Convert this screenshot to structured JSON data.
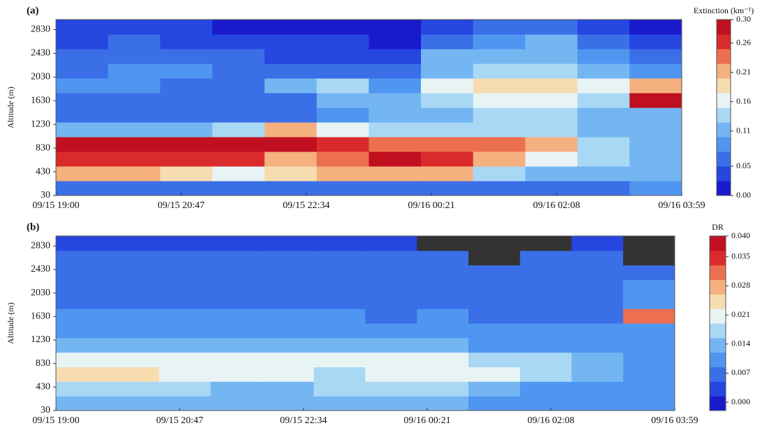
{
  "chart_data": [
    {
      "type": "heatmap",
      "title": "(a)",
      "y_label": "Altitude (m)",
      "xticks": [
        "09/15 19:00",
        "09/15 20:47",
        "09/15 22:34",
        "09/16 00:21",
        "09/16 02:08",
        "09/16 03:59"
      ],
      "ylim": [
        30,
        3000
      ],
      "yticks": [
        30,
        430,
        830,
        1230,
        1630,
        2030,
        2430,
        2830
      ],
      "z": [
        [
          0.05,
          0.05,
          0.05,
          0.05,
          0.05,
          0.06,
          0.06,
          0.06,
          0.06,
          0.06,
          0.07,
          0.08
        ],
        [
          0.2,
          0.2,
          0.18,
          0.16,
          0.18,
          0.2,
          0.22,
          0.2,
          0.14,
          0.12,
          0.1,
          0.1
        ],
        [
          0.26,
          0.26,
          0.26,
          0.26,
          0.22,
          0.24,
          0.28,
          0.26,
          0.2,
          0.16,
          0.13,
          0.12
        ],
        [
          0.29,
          0.29,
          0.28,
          0.28,
          0.28,
          0.26,
          0.24,
          0.24,
          0.24,
          0.2,
          0.14,
          0.12
        ],
        [
          0.1,
          0.11,
          0.12,
          0.14,
          0.22,
          0.16,
          0.14,
          0.14,
          0.14,
          0.13,
          0.11,
          0.1
        ],
        [
          0.06,
          0.06,
          0.07,
          0.05,
          0.06,
          0.08,
          0.1,
          0.11,
          0.13,
          0.14,
          0.12,
          0.12
        ],
        [
          0.07,
          0.07,
          0.06,
          0.05,
          0.07,
          0.1,
          0.12,
          0.14,
          0.16,
          0.16,
          0.14,
          0.28
        ],
        [
          0.08,
          0.08,
          0.07,
          0.07,
          0.1,
          0.13,
          0.09,
          0.16,
          0.18,
          0.18,
          0.16,
          0.2
        ],
        [
          0.07,
          0.08,
          0.08,
          0.07,
          0.06,
          0.05,
          0.06,
          0.12,
          0.14,
          0.14,
          0.1,
          0.08
        ],
        [
          0.05,
          0.07,
          0.06,
          0.05,
          0.04,
          0.04,
          0.03,
          0.1,
          0.12,
          0.12,
          0.08,
          0.05
        ],
        [
          0.04,
          0.05,
          0.04,
          0.03,
          0.03,
          0.03,
          0.02,
          0.05,
          0.08,
          0.1,
          0.05,
          0.03
        ],
        [
          0.03,
          0.03,
          0.03,
          0.02,
          0.02,
          0.02,
          0.02,
          0.03,
          0.05,
          0.06,
          0.03,
          0.02
        ]
      ],
      "colorbar": {
        "title": "Extinction (km⁻¹)",
        "clim": [
          0,
          0.3
        ],
        "ticks": [
          {
            "value": 0,
            "label": "0.00"
          },
          0.05,
          0.11,
          0.16,
          0.21,
          0.26,
          {
            "value": 0.3,
            "label": "0.30"
          }
        ]
      },
      "colormap": [
        "#1a1acd",
        "#2646e0",
        "#3a6fe8",
        "#4f96f0",
        "#74b6f2",
        "#a9d8f5",
        "#e8f4f4",
        "#f7dcb0",
        "#f5b080",
        "#ec7050",
        "#d92b2b",
        "#c01020"
      ],
      "null_color": "#333333"
    },
    {
      "type": "heatmap",
      "title": "(b)",
      "y_label": "Altitude (m)",
      "xticks": [
        "09/15 19:00",
        "09/15 20:47",
        "09/15 22:34",
        "09/16 00:21",
        "09/16 02:08",
        "09/16 03:59"
      ],
      "ylim": [
        30,
        3000
      ],
      "yticks": [
        30,
        430,
        830,
        1230,
        1630,
        2030,
        2430,
        2830
      ],
      "z": [
        [
          0.012,
          0.012,
          0.012,
          0.012,
          0.012,
          0.012,
          0.012,
          0.012,
          0.011,
          0.01,
          0.01,
          0.01
        ],
        [
          0.018,
          0.018,
          0.016,
          0.014,
          0.014,
          0.016,
          0.018,
          0.016,
          0.012,
          0.01,
          0.01,
          0.01
        ],
        [
          0.024,
          0.024,
          0.022,
          0.022,
          0.02,
          0.018,
          0.02,
          0.022,
          0.02,
          0.016,
          0.012,
          0.01
        ],
        [
          0.022,
          0.022,
          0.021,
          0.02,
          0.021,
          0.021,
          0.02,
          0.02,
          0.018,
          0.016,
          0.012,
          0.01
        ],
        [
          0.014,
          0.014,
          0.014,
          0.014,
          0.013,
          0.013,
          0.012,
          0.012,
          0.011,
          0.01,
          0.01,
          0.01
        ],
        [
          0.01,
          0.01,
          0.01,
          0.01,
          0.01,
          0.01,
          0.009,
          0.009,
          0.009,
          0.009,
          0.009,
          0.009
        ],
        [
          0.009,
          0.009,
          0.009,
          0.009,
          0.009,
          0.009,
          0.008,
          0.009,
          0.008,
          0.008,
          0.008,
          0.03
        ],
        [
          0.008,
          0.008,
          0.008,
          0.008,
          0.008,
          0.008,
          0.008,
          0.008,
          0.007,
          0.008,
          0.008,
          0.01
        ],
        [
          0.007,
          0.007,
          0.007,
          0.007,
          0.007,
          0.007,
          0.007,
          0.008,
          0.007,
          0.007,
          0.007,
          0.009
        ],
        [
          0.006,
          0.006,
          0.006,
          0.006,
          0.006,
          0.006,
          0.006,
          0.007,
          0.006,
          0.007,
          0.006,
          0.008
        ],
        [
          0.005,
          0.005,
          0.005,
          0.005,
          0.005,
          0.005,
          0.005,
          0.006,
          null,
          0.006,
          0.005,
          null
        ],
        [
          0.004,
          0.004,
          0.004,
          0.004,
          0.004,
          0.004,
          0.004,
          null,
          null,
          null,
          0.004,
          null
        ]
      ],
      "colorbar": {
        "title": "DR",
        "clim": [
          -0.002,
          0.04
        ],
        "ticks": [
          {
            "value": 0,
            "label": "0.000"
          },
          0.007,
          0.014,
          0.021,
          0.028,
          0.035,
          {
            "value": 0.04,
            "label": "0.040"
          }
        ]
      },
      "colormap": [
        "#1a1acd",
        "#2646e0",
        "#3a6fe8",
        "#4f96f0",
        "#74b6f2",
        "#a9d8f5",
        "#e8f4f4",
        "#f7dcb0",
        "#f5b080",
        "#ec7050",
        "#d92b2b",
        "#c01020"
      ],
      "null_color": "#333333"
    }
  ]
}
